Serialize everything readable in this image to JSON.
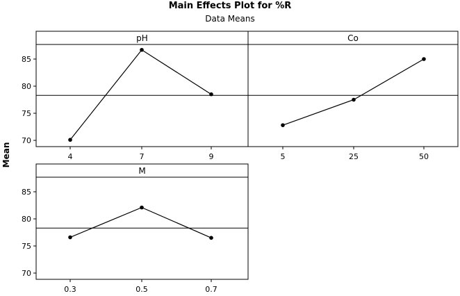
{
  "chart_data": {
    "type": "line",
    "title": "Main Effects Plot for %R",
    "subtitle": "Data Means",
    "ylabel": "Mean",
    "ylim": [
      69,
      88
    ],
    "yticks": [
      70,
      75,
      80,
      85
    ],
    "grand_mean": 78.3,
    "panels": [
      {
        "name": "pH",
        "categories": [
          "4",
          "7",
          "9"
        ],
        "values": [
          70.1,
          86.7,
          78.5
        ]
      },
      {
        "name": "Co",
        "categories": [
          "5",
          "25",
          "50"
        ],
        "values": [
          72.8,
          77.5,
          85.0
        ]
      },
      {
        "name": "M",
        "categories": [
          "0.3",
          "0.5",
          "0.7"
        ],
        "values": [
          76.6,
          82.1,
          76.5
        ]
      }
    ]
  }
}
